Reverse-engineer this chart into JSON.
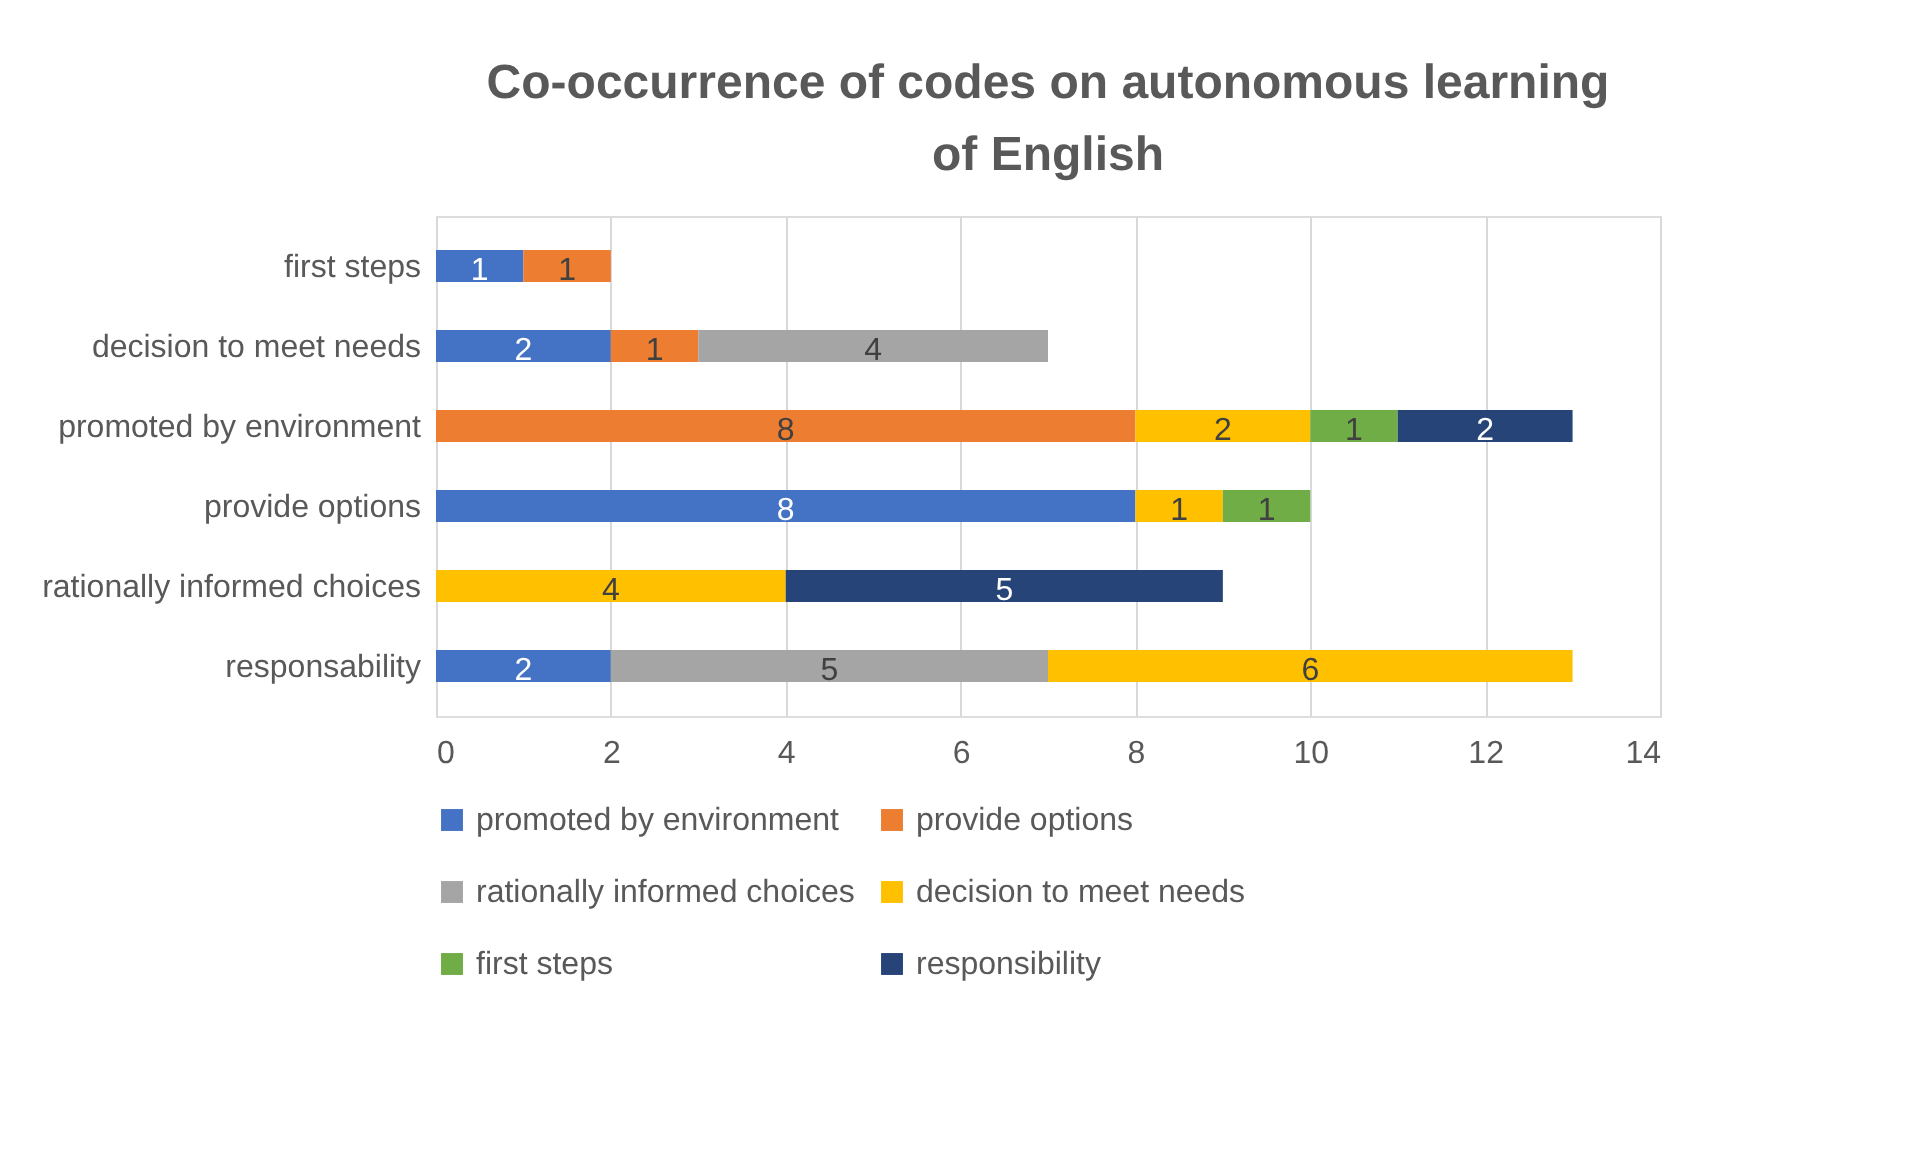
{
  "chart_data": {
    "type": "bar",
    "orientation": "horizontal",
    "stacked": true,
    "title": "Co-occurrence of codes on autonomous learning of English",
    "categories": [
      "first steps",
      "decision to meet needs",
      "promoted by environment",
      "provide options",
      "rationally informed choices",
      "responsability"
    ],
    "series": [
      {
        "name": "promoted by environment",
        "color": "#4472c4",
        "values": [
          1,
          2,
          null,
          8,
          null,
          2
        ]
      },
      {
        "name": "provide options",
        "color": "#ed7d31",
        "values": [
          1,
          1,
          8,
          null,
          null,
          null
        ]
      },
      {
        "name": "rationally informed choices",
        "color": "#a5a5a5",
        "values": [
          null,
          4,
          null,
          null,
          null,
          5
        ]
      },
      {
        "name": "decision to meet needs",
        "color": "#ffc000",
        "values": [
          null,
          null,
          2,
          1,
          4,
          6
        ]
      },
      {
        "name": "first steps",
        "color": "#70ad47",
        "values": [
          null,
          null,
          1,
          1,
          null,
          null
        ]
      },
      {
        "name": "responsibility",
        "color": "#264478",
        "values": [
          null,
          null,
          2,
          null,
          5,
          null
        ]
      }
    ],
    "xlim": [
      0,
      14
    ],
    "xticks": [
      0,
      2,
      4,
      6,
      8,
      10,
      12,
      14
    ],
    "grid": "x",
    "legend": "bottom",
    "data_labels": true
  }
}
